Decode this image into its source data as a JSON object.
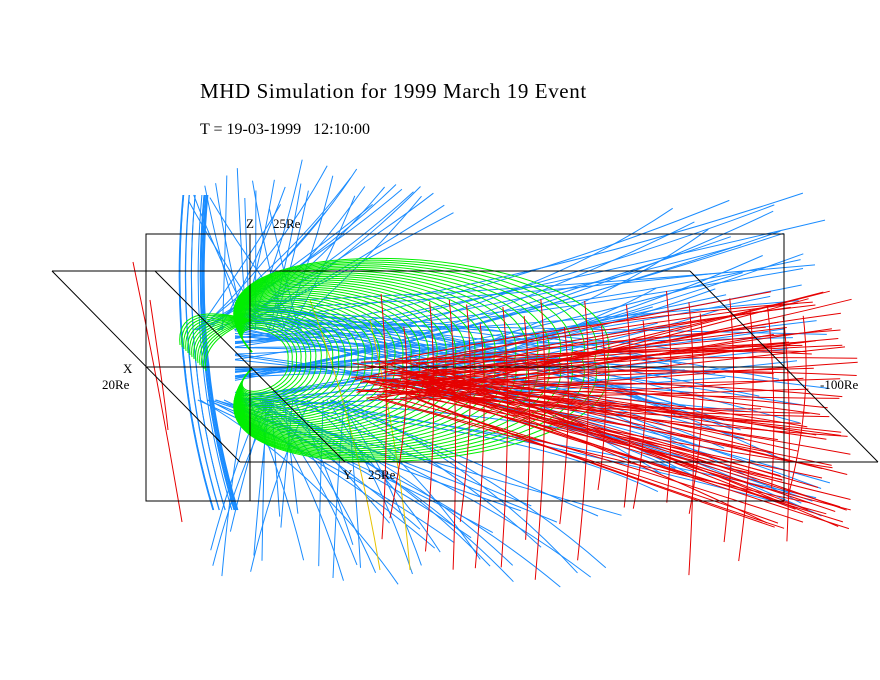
{
  "figure": {
    "title": "MHD Simulation for 1999 March 19 Event",
    "subtitle": "T = 19-03-1999   12:10:00"
  },
  "axes": {
    "z_axis_letter": "Z",
    "z_axis_extent": "25Re",
    "x_axis_letter": "X",
    "x_axis_extent": "20Re",
    "x_axis_far_extent": "-100Re",
    "y_axis_letter": "Y",
    "y_axis_extent": "25Re"
  },
  "colors": {
    "background": "#ffffff",
    "frame": "#000000",
    "closed_field_lines": "#00ee00",
    "open_field_lines": "#1a8cff",
    "tail_field_lines": "#e60000",
    "extra_field_lines": "#e6c200"
  }
}
